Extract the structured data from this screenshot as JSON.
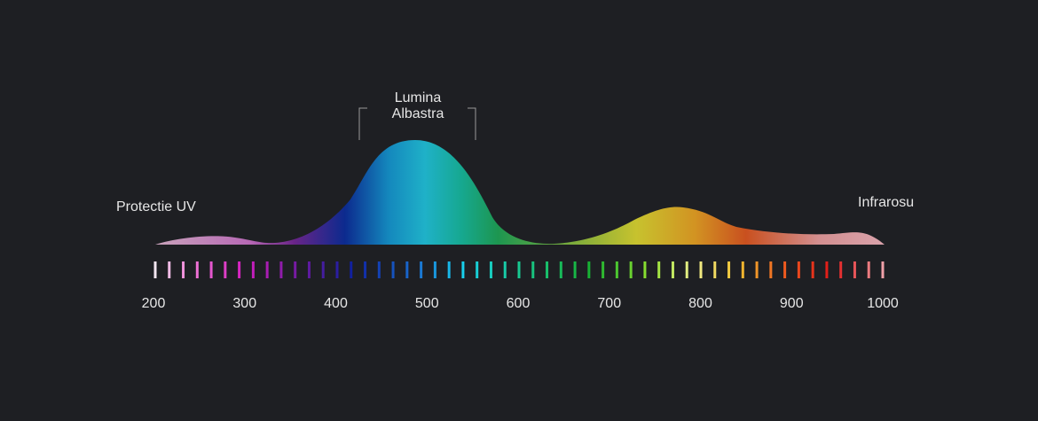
{
  "chart_data": {
    "type": "spectrum",
    "xlim": [
      200,
      1000
    ],
    "xticks": [
      200,
      300,
      400,
      500,
      600,
      700,
      800,
      900,
      1000
    ],
    "annotations": {
      "blue_light": [
        "Lumina",
        "Albastra"
      ],
      "uv": "Protectie UV",
      "infrared": "Infrarosu"
    }
  }
}
